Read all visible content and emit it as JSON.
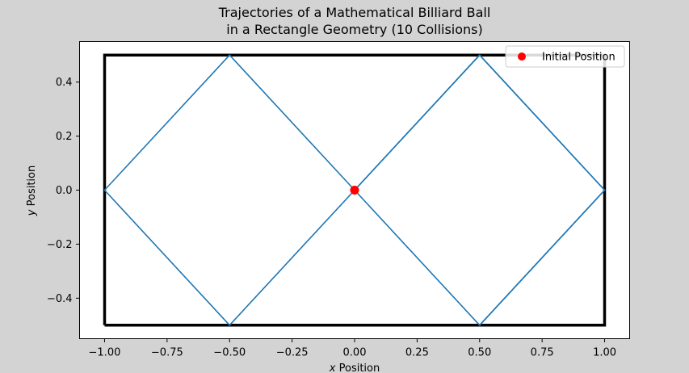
{
  "chart_data": {
    "type": "line",
    "title_lines": [
      "Trajectories of a Mathematical Billiard Ball",
      "in a Rectangle Geometry (10 Collisions)"
    ],
    "xlabel_italic": "x",
    "xlabel_rest": "Position",
    "ylabel_italic": "y",
    "ylabel_rest": "Position",
    "xlim": [
      -1.1,
      1.1
    ],
    "ylim": [
      -0.55,
      0.55
    ],
    "x_ticks": [
      -1.0,
      -0.75,
      -0.5,
      -0.25,
      0.0,
      0.25,
      0.5,
      0.75,
      1.0
    ],
    "x_tick_labels": [
      "−1.00",
      "−0.75",
      "−0.50",
      "−0.25",
      "0.00",
      "0.25",
      "0.50",
      "0.75",
      "1.00"
    ],
    "y_ticks": [
      -0.4,
      -0.2,
      0.0,
      0.2,
      0.4
    ],
    "y_tick_labels": [
      "−0.4",
      "−0.2",
      "0.0",
      "0.2",
      "0.4"
    ],
    "grid": false,
    "legend_position": "top-right",
    "boundary": {
      "x": [
        -1,
        1,
        1,
        -1,
        -1
      ],
      "y": [
        -0.5,
        -0.5,
        0.5,
        0.5,
        -0.5
      ],
      "color": "#000000"
    },
    "trajectory": {
      "x": [
        0,
        0.5,
        1,
        0.5,
        0,
        -0.5,
        -1,
        -0.5,
        0,
        0.5,
        1,
        0.5
      ],
      "y": [
        0,
        0.5,
        0,
        -0.5,
        0,
        0.5,
        0,
        -0.5,
        0,
        0.5,
        0,
        -0.5
      ],
      "color": "#1f77b4"
    },
    "initial_position": {
      "name": "Initial Position",
      "x": 0,
      "y": 0,
      "color": "#ff0000"
    }
  }
}
